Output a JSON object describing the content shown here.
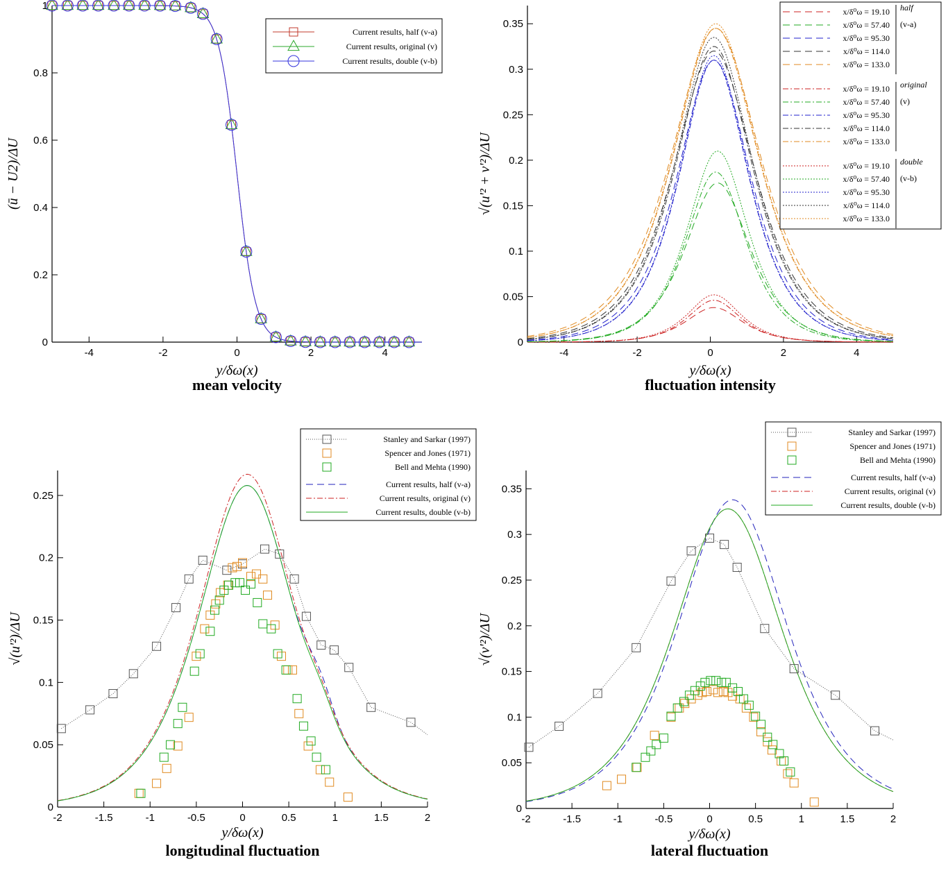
{
  "figure": {
    "title": ""
  },
  "chart_data": [
    {
      "id": "mean",
      "type": "line",
      "caption": "mean velocity",
      "xlabel": "y/δω(x)",
      "ylabel": "(ū − U2)/ΔU",
      "xlim": [
        -5,
        5
      ],
      "ylim": [
        0,
        1
      ],
      "xticks": [
        -4,
        -2,
        0,
        2,
        4
      ],
      "yticks": [
        0,
        0.2,
        0.4,
        0.6,
        0.8,
        1
      ],
      "ytick_labels": [
        "0",
        "0.2",
        "0.4",
        "0.6",
        "0.8",
        "1"
      ],
      "legend": {
        "position": "top-right",
        "entries": [
          {
            "label": "Current results, half (v-a)",
            "color": "#c0392b",
            "marker": "square"
          },
          {
            "label": "Current results, original (v)",
            "color": "#2ea82e",
            "marker": "triangle"
          },
          {
            "label": "Current results, double (v-b)",
            "color": "#3333dd",
            "marker": "circle"
          }
        ]
      },
      "curve": {
        "type": "tanh",
        "center": 0,
        "width": 0.5
      },
      "markers_x": [
        -5,
        -4.58,
        -4.17,
        -3.75,
        -3.33,
        -2.92,
        -2.5,
        -2.08,
        -1.67,
        -1.25,
        -0.92,
        -0.55,
        -0.15,
        0.25,
        0.65,
        1.05,
        1.45,
        1.85,
        2.25,
        2.65,
        3.05,
        3.45,
        3.85,
        4.25,
        4.65
      ]
    },
    {
      "id": "intensity",
      "type": "line",
      "caption": "fluctuation intensity",
      "xlabel": "y/δω(x)",
      "ylabel": "√(u'² + v'²)/ΔU",
      "xlim": [
        -5,
        5
      ],
      "ylim": [
        0,
        0.37
      ],
      "xticks": [
        -4,
        -2,
        0,
        2,
        4
      ],
      "yticks": [
        0,
        0.05,
        0.1,
        0.15,
        0.2,
        0.25,
        0.3,
        0.35
      ],
      "ytick_labels": [
        "0",
        "0.05",
        "0.1",
        "0.15",
        "0.2",
        "0.25",
        "0.3",
        "0.35"
      ],
      "legend": {
        "position": "top-right",
        "groups": [
          {
            "name": "half",
            "sub": "(v-a)",
            "dash": "10,6",
            "entries": [
              "x/δ⁰ω = 19.10",
              "x/δ⁰ω = 57.40",
              "x/δ⁰ω = 95.30",
              "x/δ⁰ω = 114.0",
              "x/δ⁰ω = 133.0"
            ]
          },
          {
            "name": "original",
            "sub": "(v)",
            "dash": "8,3,2,3",
            "entries": [
              "x/δ⁰ω = 19.10",
              "x/δ⁰ω = 57.40",
              "x/δ⁰ω = 95.30",
              "x/δ⁰ω = 114.0",
              "x/δ⁰ω = 133.0"
            ]
          },
          {
            "name": "double",
            "sub": "(v-b)",
            "dash": "2,2",
            "entries": [
              "x/δ⁰ω = 19.10",
              "x/δ⁰ω = 57.40",
              "x/δ⁰ω = 95.30",
              "x/δ⁰ω = 114.0",
              "x/δ⁰ω = 133.0"
            ]
          }
        ],
        "station_colors": [
          "#cc2222",
          "#22aa22",
          "#2222cc",
          "#333333",
          "#e08a20"
        ]
      },
      "series": [
        {
          "station": "19.10",
          "group": "half",
          "peak": 0.038,
          "center": 0.1
        },
        {
          "station": "57.40",
          "group": "half",
          "peak": 0.175,
          "center": 0.2
        },
        {
          "station": "95.30",
          "group": "half",
          "peak": 0.31,
          "center": 0.1
        },
        {
          "station": "114.0",
          "group": "half",
          "peak": 0.32,
          "center": 0.1
        },
        {
          "station": "133.0",
          "group": "half",
          "peak": 0.345,
          "center": 0.15
        },
        {
          "station": "19.10",
          "group": "original",
          "peak": 0.046,
          "center": 0.1
        },
        {
          "station": "57.40",
          "group": "original",
          "peak": 0.187,
          "center": 0.15
        },
        {
          "station": "95.30",
          "group": "original",
          "peak": 0.31,
          "center": 0.1
        },
        {
          "station": "114.0",
          "group": "original",
          "peak": 0.325,
          "center": 0.1
        },
        {
          "station": "133.0",
          "group": "original",
          "peak": 0.345,
          "center": 0.15
        },
        {
          "station": "19.10",
          "group": "double",
          "peak": 0.052,
          "center": 0.1
        },
        {
          "station": "57.40",
          "group": "double",
          "peak": 0.21,
          "center": 0.2
        },
        {
          "station": "95.30",
          "group": "double",
          "peak": 0.315,
          "center": 0.1
        },
        {
          "station": "114.0",
          "group": "double",
          "peak": 0.335,
          "center": 0.1
        },
        {
          "station": "133.0",
          "group": "double",
          "peak": 0.35,
          "center": 0.15
        }
      ]
    },
    {
      "id": "longitudinal",
      "type": "scatter",
      "caption": "longitudinal fluctuation",
      "xlabel": "y/δω(x)",
      "ylabel": "√(u'²)/ΔU",
      "xlim": [
        -2,
        2
      ],
      "ylim": [
        0,
        0.27
      ],
      "xticks": [
        -2,
        -1.5,
        -1,
        -0.5,
        0,
        0.5,
        1,
        1.5,
        2
      ],
      "yticks": [
        0,
        0.05,
        0.1,
        0.15,
        0.2,
        0.25
      ],
      "xtick_labels": [
        "-2",
        "-1.5",
        "-1",
        "-0.5",
        "0",
        "0.5",
        "1",
        "1.5",
        "2"
      ],
      "ytick_labels": [
        "0",
        "0.05",
        "0.1",
        "0.15",
        "0.2",
        "0.25"
      ],
      "legend": {
        "position": "top-right",
        "entries": [
          {
            "label": "Stanley and Sarkar (1997)",
            "color": "#555555",
            "kind": "dotted-square"
          },
          {
            "label": "Spencer and Jones (1971)",
            "color": "#e08a20",
            "kind": "square"
          },
          {
            "label": "Bell and Mehta (1990)",
            "color": "#22aa22",
            "kind": "square"
          },
          {
            "label": "Current results, half (v-a)",
            "color": "#2222bb",
            "kind": "dash"
          },
          {
            "label": "Current results, original (v)",
            "color": "#cc2222",
            "kind": "dashdot"
          },
          {
            "label": "Current results, double (v-b)",
            "color": "#22aa22",
            "kind": "solid"
          }
        ]
      },
      "stanley": {
        "x": [
          -1.96,
          -1.65,
          -1.4,
          -1.18,
          -0.93,
          -0.72,
          -0.58,
          -0.43,
          -0.17,
          0.0,
          0.24,
          0.4,
          0.56,
          0.69,
          0.85,
          0.99,
          1.15,
          1.39,
          1.82
        ],
        "y": [
          0.063,
          0.078,
          0.091,
          0.107,
          0.129,
          0.16,
          0.183,
          0.198,
          0.19,
          0.195,
          0.207,
          0.203,
          0.183,
          0.153,
          0.13,
          0.126,
          0.112,
          0.08,
          0.068
        ]
      },
      "spencer": {
        "x": [
          -1.12,
          -0.93,
          -0.82,
          -0.7,
          -0.58,
          -0.5,
          -0.41,
          -0.35,
          -0.29,
          -0.24,
          -0.16,
          -0.11,
          -0.06,
          0.0,
          0.09,
          0.15,
          0.22,
          0.27,
          0.35,
          0.42,
          0.49,
          0.54,
          0.61,
          0.71,
          0.84,
          0.94,
          1.14
        ],
        "y": [
          0.011,
          0.019,
          0.031,
          0.049,
          0.072,
          0.121,
          0.143,
          0.154,
          0.163,
          0.172,
          0.178,
          0.192,
          0.193,
          0.196,
          0.185,
          0.187,
          0.183,
          0.17,
          0.146,
          0.121,
          0.11,
          0.11,
          0.075,
          0.049,
          0.03,
          0.02,
          0.008
        ]
      },
      "bell": {
        "x": [
          -1.1,
          -0.85,
          -0.78,
          -0.7,
          -0.65,
          -0.52,
          -0.46,
          -0.35,
          -0.3,
          -0.25,
          -0.2,
          -0.15,
          -0.08,
          -0.03,
          0.03,
          0.09,
          0.16,
          0.22,
          0.31,
          0.38,
          0.47,
          0.59,
          0.66,
          0.74,
          0.8,
          0.9
        ],
        "y": [
          0.011,
          0.04,
          0.05,
          0.067,
          0.08,
          0.109,
          0.123,
          0.141,
          0.158,
          0.166,
          0.174,
          0.178,
          0.18,
          0.18,
          0.174,
          0.179,
          0.164,
          0.147,
          0.143,
          0.123,
          0.11,
          0.087,
          0.065,
          0.053,
          0.04,
          0.03
        ]
      },
      "curves": [
        {
          "name": "half",
          "peak": 0.258,
          "center": 0.05
        },
        {
          "name": "original",
          "peak": 0.267,
          "center": 0.05
        },
        {
          "name": "double",
          "peak": 0.258,
          "center": 0.05
        }
      ]
    },
    {
      "id": "lateral",
      "type": "scatter",
      "caption": "lateral fluctuation",
      "xlabel": "y/δω(x)",
      "ylabel": "√(v'²)/ΔU",
      "xlim": [
        -2,
        2
      ],
      "ylim": [
        0,
        0.37
      ],
      "xticks": [
        -2,
        -1.5,
        -1,
        -0.5,
        0,
        0.5,
        1,
        1.5,
        2
      ],
      "yticks": [
        0,
        0.05,
        0.1,
        0.15,
        0.2,
        0.25,
        0.3,
        0.35
      ],
      "xtick_labels": [
        "-2",
        "-1.5",
        "-1",
        "-0.5",
        "0",
        "0.5",
        "1",
        "1.5",
        "2"
      ],
      "ytick_labels": [
        "0",
        "0.05",
        "0.1",
        "0.15",
        "0.2",
        "0.25",
        "0.3",
        "0.35"
      ],
      "legend": {
        "position": "top-right",
        "entries": [
          {
            "label": "Stanley and Sarkar (1997)",
            "color": "#555555",
            "kind": "dotted-square"
          },
          {
            "label": "Spencer and Jones (1971)",
            "color": "#e08a20",
            "kind": "square"
          },
          {
            "label": "Bell and Mehta (1990)",
            "color": "#22aa22",
            "kind": "square"
          },
          {
            "label": "Current results, half (v-a)",
            "color": "#2222bb",
            "kind": "dash"
          },
          {
            "label": "Current results, original (v)",
            "color": "#cc2222",
            "kind": "dashdot"
          },
          {
            "label": "Current results, double (v-b)",
            "color": "#22aa22",
            "kind": "solid"
          }
        ]
      },
      "stanley": {
        "x": [
          -1.97,
          -1.64,
          -1.22,
          -0.8,
          -0.42,
          -0.2,
          0.0,
          0.16,
          0.3,
          0.6,
          0.92,
          1.37,
          1.8
        ],
        "y": [
          0.067,
          0.09,
          0.126,
          0.176,
          0.249,
          0.282,
          0.296,
          0.289,
          0.264,
          0.197,
          0.153,
          0.124,
          0.085
        ]
      },
      "spencer": {
        "x": [
          -1.12,
          -0.96,
          -0.79,
          -0.6,
          -0.42,
          -0.33,
          -0.27,
          -0.2,
          -0.13,
          -0.08,
          -0.03,
          0.04,
          0.09,
          0.15,
          0.2,
          0.25,
          0.33,
          0.4,
          0.48,
          0.56,
          0.63,
          0.68,
          0.78,
          0.85,
          0.92,
          1.14
        ],
        "y": [
          0.025,
          0.032,
          0.045,
          0.08,
          0.1,
          0.11,
          0.115,
          0.12,
          0.124,
          0.127,
          0.128,
          0.13,
          0.127,
          0.128,
          0.127,
          0.123,
          0.12,
          0.11,
          0.1,
          0.084,
          0.073,
          0.064,
          0.052,
          0.038,
          0.028,
          0.007
        ]
      },
      "bell": {
        "x": [
          -0.8,
          -0.7,
          -0.64,
          -0.58,
          -0.5,
          -0.42,
          -0.35,
          -0.28,
          -0.22,
          -0.16,
          -0.1,
          -0.05,
          0.01,
          0.07,
          0.13,
          0.18,
          0.25,
          0.31,
          0.37,
          0.43,
          0.5,
          0.56,
          0.63,
          0.69,
          0.76,
          0.81,
          0.88
        ],
        "y": [
          0.045,
          0.056,
          0.063,
          0.07,
          0.077,
          0.101,
          0.11,
          0.117,
          0.124,
          0.129,
          0.134,
          0.138,
          0.14,
          0.14,
          0.138,
          0.138,
          0.132,
          0.128,
          0.12,
          0.113,
          0.101,
          0.092,
          0.078,
          0.07,
          0.06,
          0.052,
          0.04
        ]
      },
      "curves": [
        {
          "name": "half",
          "peak": 0.338,
          "center": 0.25
        },
        {
          "name": "original",
          "peak": 0.328,
          "center": 0.2
        },
        {
          "name": "double",
          "peak": 0.328,
          "center": 0.2
        }
      ]
    }
  ]
}
